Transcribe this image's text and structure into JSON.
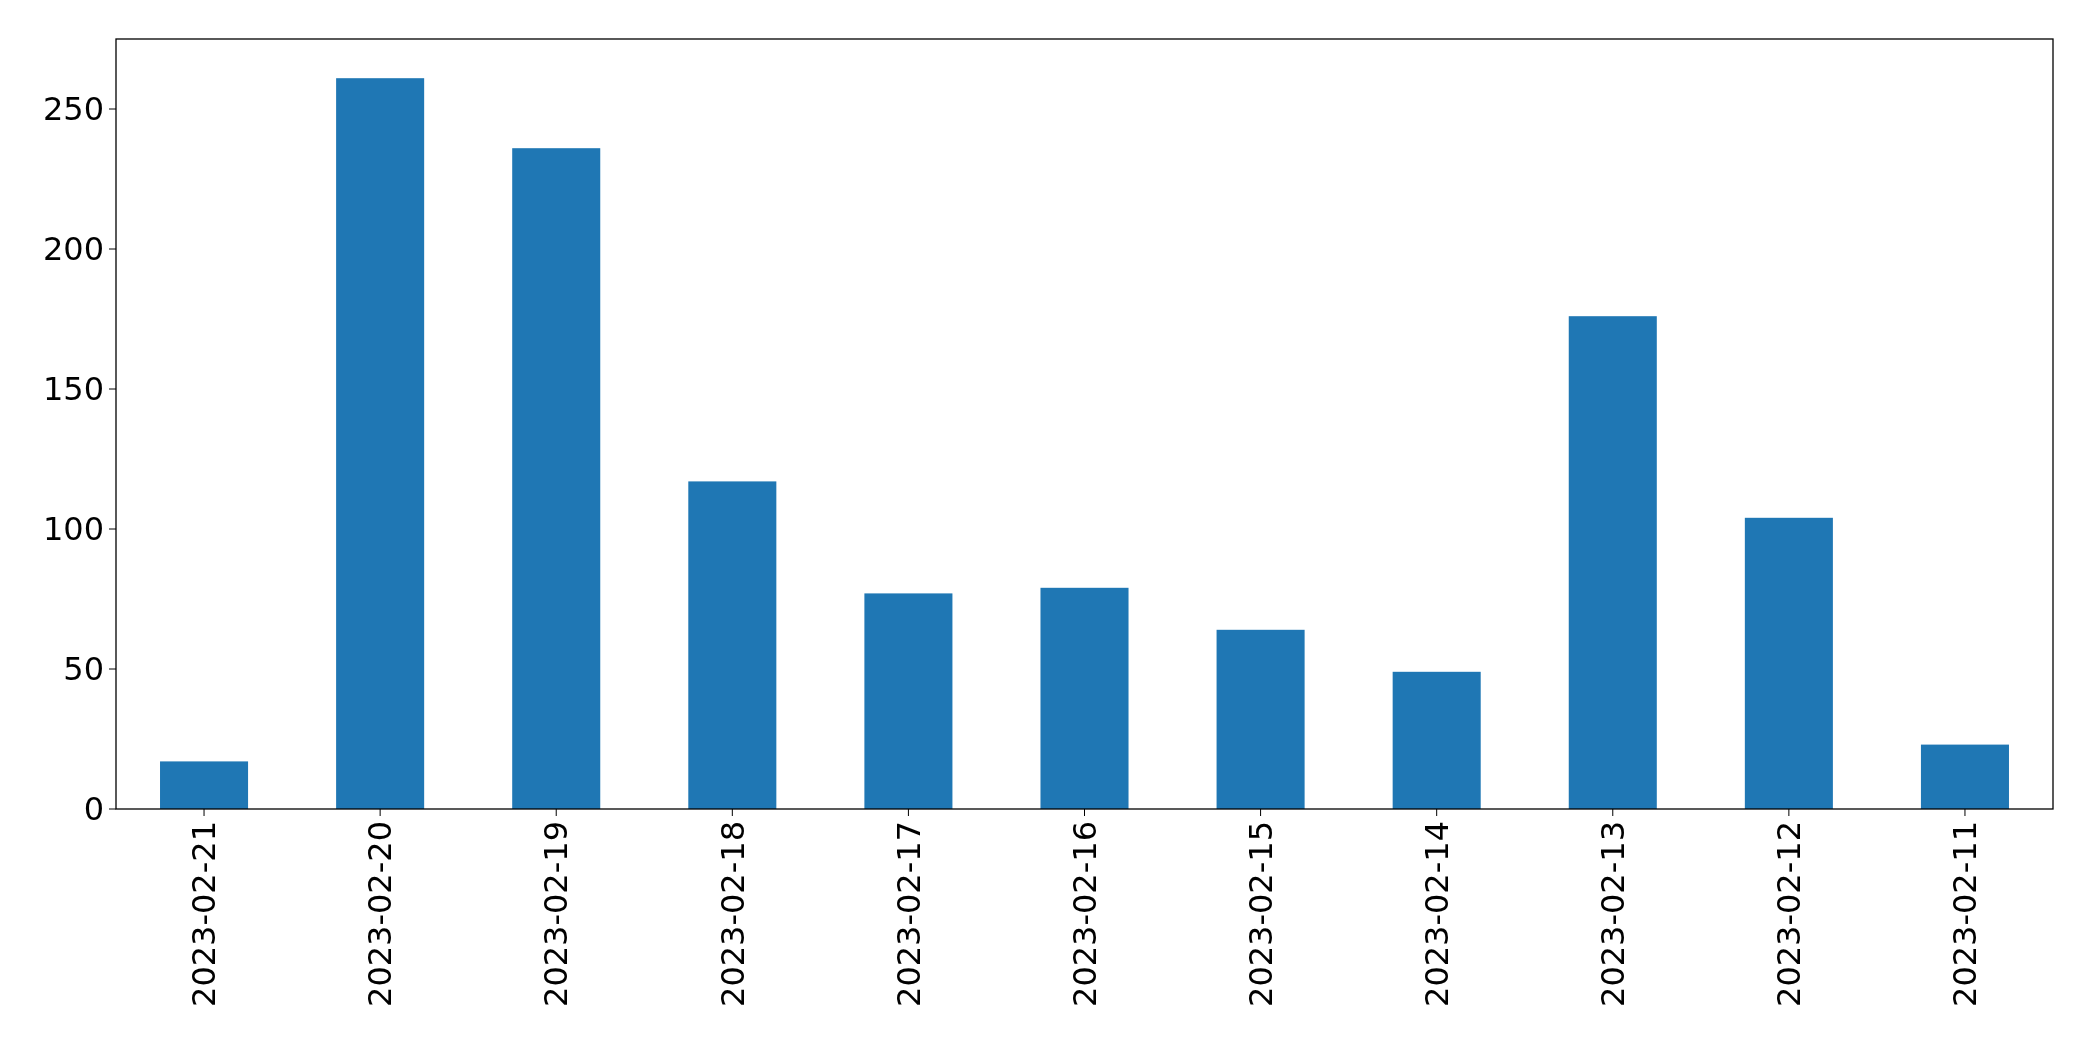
{
  "chart_data": {
    "type": "bar",
    "categories": [
      "2023-02-21",
      "2023-02-20",
      "2023-02-19",
      "2023-02-18",
      "2023-02-17",
      "2023-02-16",
      "2023-02-15",
      "2023-02-14",
      "2023-02-13",
      "2023-02-12",
      "2023-02-11"
    ],
    "values": [
      17,
      261,
      236,
      117,
      77,
      79,
      64,
      49,
      176,
      104,
      23
    ],
    "color": "#1f77b4",
    "ylim": [
      0,
      275
    ],
    "yticks": [
      0,
      50,
      100,
      150,
      200,
      250
    ],
    "grid": false
  }
}
